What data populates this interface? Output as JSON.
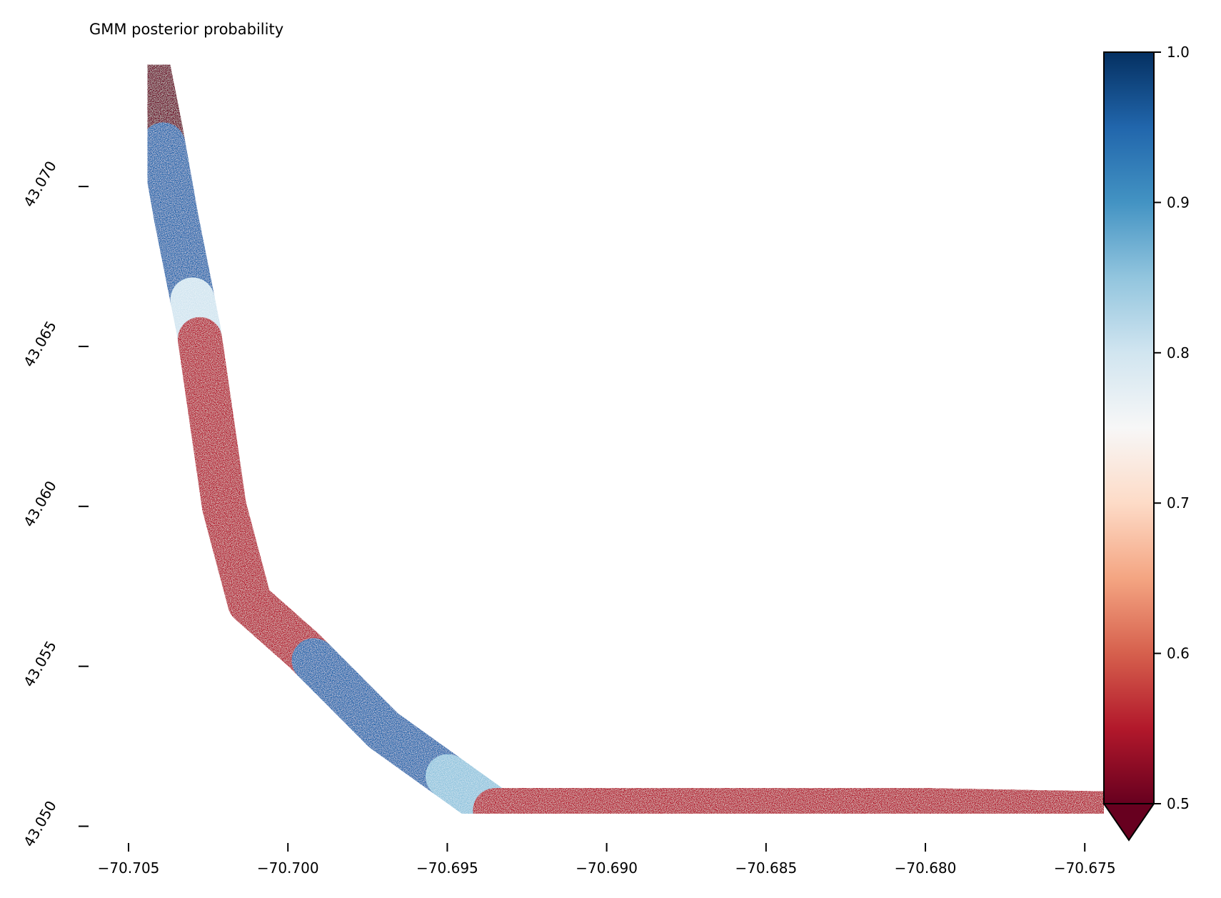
{
  "chart_data": {
    "type": "heatmap",
    "title": "GMM posterior probability",
    "xlabel": "",
    "ylabel": "",
    "xlim": [
      -70.7063,
      -70.6744
    ],
    "ylim": [
      43.0497,
      43.0742
    ],
    "x_ticks": [
      -70.705,
      -70.7,
      -70.695,
      -70.69,
      -70.685,
      -70.68,
      -70.675
    ],
    "x_tick_labels": [
      "−70.705",
      "−70.700",
      "−70.695",
      "−70.690",
      "−70.685",
      "−70.680",
      "−70.675"
    ],
    "y_ticks": [
      43.05,
      43.055,
      43.06,
      43.065,
      43.07
    ],
    "y_tick_labels": [
      "43.050",
      "43.055",
      "43.060",
      "43.065",
      "43.070"
    ],
    "grid": false,
    "colormap": "RdBu",
    "colorbar": {
      "min": 0.5,
      "max": 1.0,
      "extend": "min",
      "ticks": [
        0.5,
        0.6,
        0.7,
        0.8,
        0.9,
        1.0
      ],
      "tick_labels": [
        "0.5",
        "0.6",
        "0.7",
        "0.8",
        "0.9",
        "1.0"
      ],
      "colors": [
        "#67001f",
        "#b2182b",
        "#d6604d",
        "#f4a582",
        "#fddbc7",
        "#f7f7f7",
        "#d1e5f0",
        "#92c5de",
        "#4393c3",
        "#2166ac",
        "#053061"
      ]
    },
    "track_centerline": [
      {
        "lon": -70.7044,
        "lat": 43.0738
      },
      {
        "lon": -70.704,
        "lat": 43.0718
      },
      {
        "lon": -70.7035,
        "lat": 43.069
      },
      {
        "lon": -70.7028,
        "lat": 43.0655
      },
      {
        "lon": -70.702,
        "lat": 43.06
      },
      {
        "lon": -70.7012,
        "lat": 43.057
      },
      {
        "lon": -70.6995,
        "lat": 43.0555
      },
      {
        "lon": -70.697,
        "lat": 43.053
      },
      {
        "lon": -70.6935,
        "lat": 43.0505
      },
      {
        "lon": -70.69,
        "lat": 43.0505
      },
      {
        "lon": -70.68,
        "lat": 43.0505
      },
      {
        "lon": -70.6744,
        "lat": 43.0504
      }
    ],
    "track_segments": [
      {
        "lat_from": 43.0742,
        "lat_to": 43.0713,
        "posterior": 0.5
      },
      {
        "lat_from": 43.0713,
        "lat_to": 43.0665,
        "posterior": 0.95
      },
      {
        "lat_from": 43.0665,
        "lat_to": 43.0652,
        "posterior": 0.8
      },
      {
        "lat_from": 43.0652,
        "lat_to": 43.0562,
        "posterior": 0.55
      },
      {
        "lon_from": -70.6992,
        "lon_to": -70.695,
        "posterior": 0.95
      },
      {
        "lon_from": -70.695,
        "lon_to": -70.6935,
        "posterior": 0.85
      },
      {
        "lon_from": -70.6935,
        "lon_to": -70.6744,
        "posterior": 0.55
      }
    ]
  }
}
